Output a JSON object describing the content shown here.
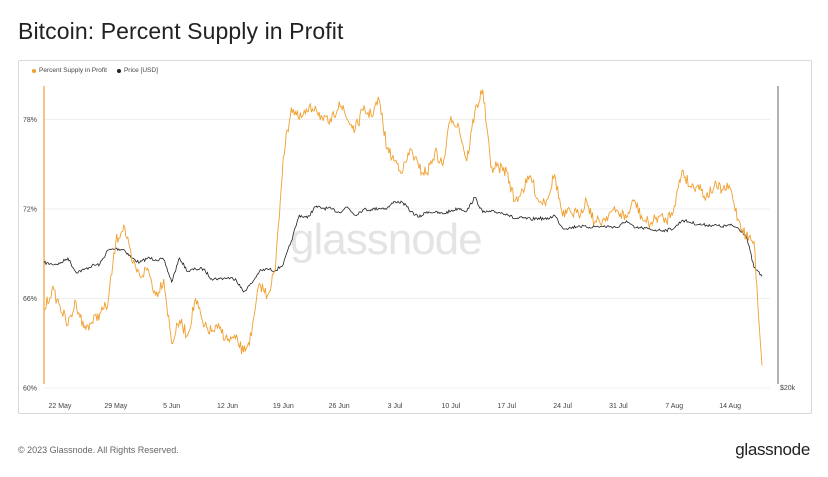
{
  "header": {
    "title": "Bitcoin: Percent Supply in Profit"
  },
  "footer": {
    "copyright": "© 2023 Glassnode. All Rights Reserved.",
    "logo": "glassnode"
  },
  "watermark": "glassnode",
  "chart_data": {
    "type": "line",
    "title": "Bitcoin: Percent Supply in Profit",
    "legend_position": "top-left",
    "grid": "horizontal",
    "x_ticks": [
      "22 May",
      "29 May",
      "5 Jun",
      "12 Jun",
      "19 Jun",
      "26 Jun",
      "3 Jul",
      "10 Jul",
      "17 Jul",
      "24 Jul",
      "31 Jul",
      "7 Aug",
      "14 Aug"
    ],
    "x_range": [
      "2023-05-20",
      "2023-08-19"
    ],
    "y_left": {
      "ticks": [
        "60%",
        "66%",
        "72%",
        "78%"
      ],
      "range": [
        60,
        80.5
      ]
    },
    "y_right": {
      "ticks": [
        "$20k"
      ],
      "scale": "log"
    },
    "series": [
      {
        "name": "Percent Supply in Profit",
        "axis": "left",
        "color": "#f0a030",
        "x": [
          "2023-05-20",
          "2023-05-21",
          "2023-05-22",
          "2023-05-23",
          "2023-05-24",
          "2023-05-25",
          "2023-05-26",
          "2023-05-27",
          "2023-05-28",
          "2023-05-29",
          "2023-05-30",
          "2023-05-31",
          "2023-06-01",
          "2023-06-02",
          "2023-06-03",
          "2023-06-04",
          "2023-06-05",
          "2023-06-06",
          "2023-06-07",
          "2023-06-08",
          "2023-06-09",
          "2023-06-10",
          "2023-06-11",
          "2023-06-12",
          "2023-06-13",
          "2023-06-14",
          "2023-06-15",
          "2023-06-16",
          "2023-06-17",
          "2023-06-18",
          "2023-06-19",
          "2023-06-20",
          "2023-06-21",
          "2023-06-22",
          "2023-06-23",
          "2023-06-24",
          "2023-06-25",
          "2023-06-26",
          "2023-06-27",
          "2023-06-28",
          "2023-06-29",
          "2023-06-30",
          "2023-07-01",
          "2023-07-02",
          "2023-07-03",
          "2023-07-04",
          "2023-07-05",
          "2023-07-06",
          "2023-07-07",
          "2023-07-08",
          "2023-07-09",
          "2023-07-10",
          "2023-07-11",
          "2023-07-12",
          "2023-07-13",
          "2023-07-14",
          "2023-07-15",
          "2023-07-16",
          "2023-07-17",
          "2023-07-18",
          "2023-07-19",
          "2023-07-20",
          "2023-07-21",
          "2023-07-22",
          "2023-07-23",
          "2023-07-24",
          "2023-07-25",
          "2023-07-26",
          "2023-07-27",
          "2023-07-28",
          "2023-07-29",
          "2023-07-30",
          "2023-07-31",
          "2023-08-01",
          "2023-08-02",
          "2023-08-03",
          "2023-08-04",
          "2023-08-05",
          "2023-08-06",
          "2023-08-07",
          "2023-08-08",
          "2023-08-09",
          "2023-08-10",
          "2023-08-11",
          "2023-08-12",
          "2023-08-13",
          "2023-08-14",
          "2023-08-15",
          "2023-08-16",
          "2023-08-17",
          "2023-08-18"
        ],
        "values": [
          65.2,
          66.6,
          65.5,
          64.2,
          65.8,
          64.0,
          64.4,
          65.0,
          65.6,
          69.8,
          70.9,
          68.5,
          67.5,
          68.0,
          66.2,
          67.3,
          63.0,
          64.5,
          63.5,
          66.0,
          64.1,
          63.8,
          64.0,
          63.2,
          63.3,
          62.4,
          63.5,
          67.0,
          66.2,
          68.0,
          75.5,
          78.8,
          78.0,
          78.5,
          78.9,
          77.9,
          77.8,
          79.2,
          78.0,
          77.3,
          78.6,
          78.3,
          79.3,
          76.0,
          75.2,
          74.6,
          76.0,
          74.7,
          74.4,
          75.8,
          74.9,
          78.2,
          77.5,
          75.2,
          78.5,
          80.0,
          74.8,
          74.8,
          74.5,
          72.5,
          73.3,
          74.2,
          72.5,
          72.6,
          74.3,
          71.5,
          71.8,
          71.6,
          72.6,
          71.1,
          71.2,
          71.8,
          71.8,
          71.4,
          72.6,
          71.3,
          71.0,
          71.5,
          71.2,
          72.2,
          74.6,
          73.5,
          73.6,
          72.8,
          73.5,
          73.3,
          73.4,
          71.3,
          70.2,
          69.8,
          61.5
        ]
      },
      {
        "name": "Price [USD]",
        "axis": "right",
        "color": "#222222",
        "x": [
          "2023-05-20",
          "2023-05-21",
          "2023-05-22",
          "2023-05-23",
          "2023-05-24",
          "2023-05-25",
          "2023-05-26",
          "2023-05-27",
          "2023-05-28",
          "2023-05-29",
          "2023-05-30",
          "2023-05-31",
          "2023-06-01",
          "2023-06-02",
          "2023-06-03",
          "2023-06-04",
          "2023-06-05",
          "2023-06-06",
          "2023-06-07",
          "2023-06-08",
          "2023-06-09",
          "2023-06-10",
          "2023-06-11",
          "2023-06-12",
          "2023-06-13",
          "2023-06-14",
          "2023-06-15",
          "2023-06-16",
          "2023-06-17",
          "2023-06-18",
          "2023-06-19",
          "2023-06-20",
          "2023-06-21",
          "2023-06-22",
          "2023-06-23",
          "2023-06-24",
          "2023-06-25",
          "2023-06-26",
          "2023-06-27",
          "2023-06-28",
          "2023-06-29",
          "2023-06-30",
          "2023-07-01",
          "2023-07-02",
          "2023-07-03",
          "2023-07-04",
          "2023-07-05",
          "2023-07-06",
          "2023-07-07",
          "2023-07-08",
          "2023-07-09",
          "2023-07-10",
          "2023-07-11",
          "2023-07-12",
          "2023-07-13",
          "2023-07-14",
          "2023-07-15",
          "2023-07-16",
          "2023-07-17",
          "2023-07-18",
          "2023-07-19",
          "2023-07-20",
          "2023-07-21",
          "2023-07-22",
          "2023-07-23",
          "2023-07-24",
          "2023-07-25",
          "2023-07-26",
          "2023-07-27",
          "2023-07-28",
          "2023-07-29",
          "2023-07-30",
          "2023-07-31",
          "2023-08-01",
          "2023-08-02",
          "2023-08-03",
          "2023-08-04",
          "2023-08-05",
          "2023-08-06",
          "2023-08-07",
          "2023-08-08",
          "2023-08-09",
          "2023-08-10",
          "2023-08-11",
          "2023-08-12",
          "2023-08-13",
          "2023-08-14",
          "2023-08-15",
          "2023-08-16",
          "2023-08-17",
          "2023-08-18"
        ],
        "values": [
          26900,
          26800,
          26850,
          27200,
          26300,
          26450,
          26700,
          26800,
          27700,
          27800,
          27750,
          27200,
          26900,
          27200,
          27100,
          27100,
          25700,
          27200,
          26350,
          26500,
          26500,
          25900,
          25900,
          25950,
          25900,
          25100,
          25600,
          26350,
          26500,
          26400,
          26800,
          28300,
          30100,
          29900,
          30700,
          30600,
          30550,
          30300,
          30700,
          30100,
          30500,
          30500,
          30600,
          30600,
          31100,
          31000,
          30350,
          29950,
          30350,
          30300,
          30200,
          30400,
          30600,
          30400,
          31400,
          30300,
          30350,
          30300,
          30200,
          29850,
          29900,
          29800,
          29900,
          29800,
          30100,
          29200,
          29200,
          29350,
          29250,
          29300,
          29300,
          29300,
          29250,
          29700,
          29200,
          29200,
          29100,
          29050,
          29050,
          29200,
          29750,
          29600,
          29450,
          29400,
          29400,
          29300,
          29400,
          29200,
          28700,
          26600,
          26050
        ]
      }
    ]
  }
}
